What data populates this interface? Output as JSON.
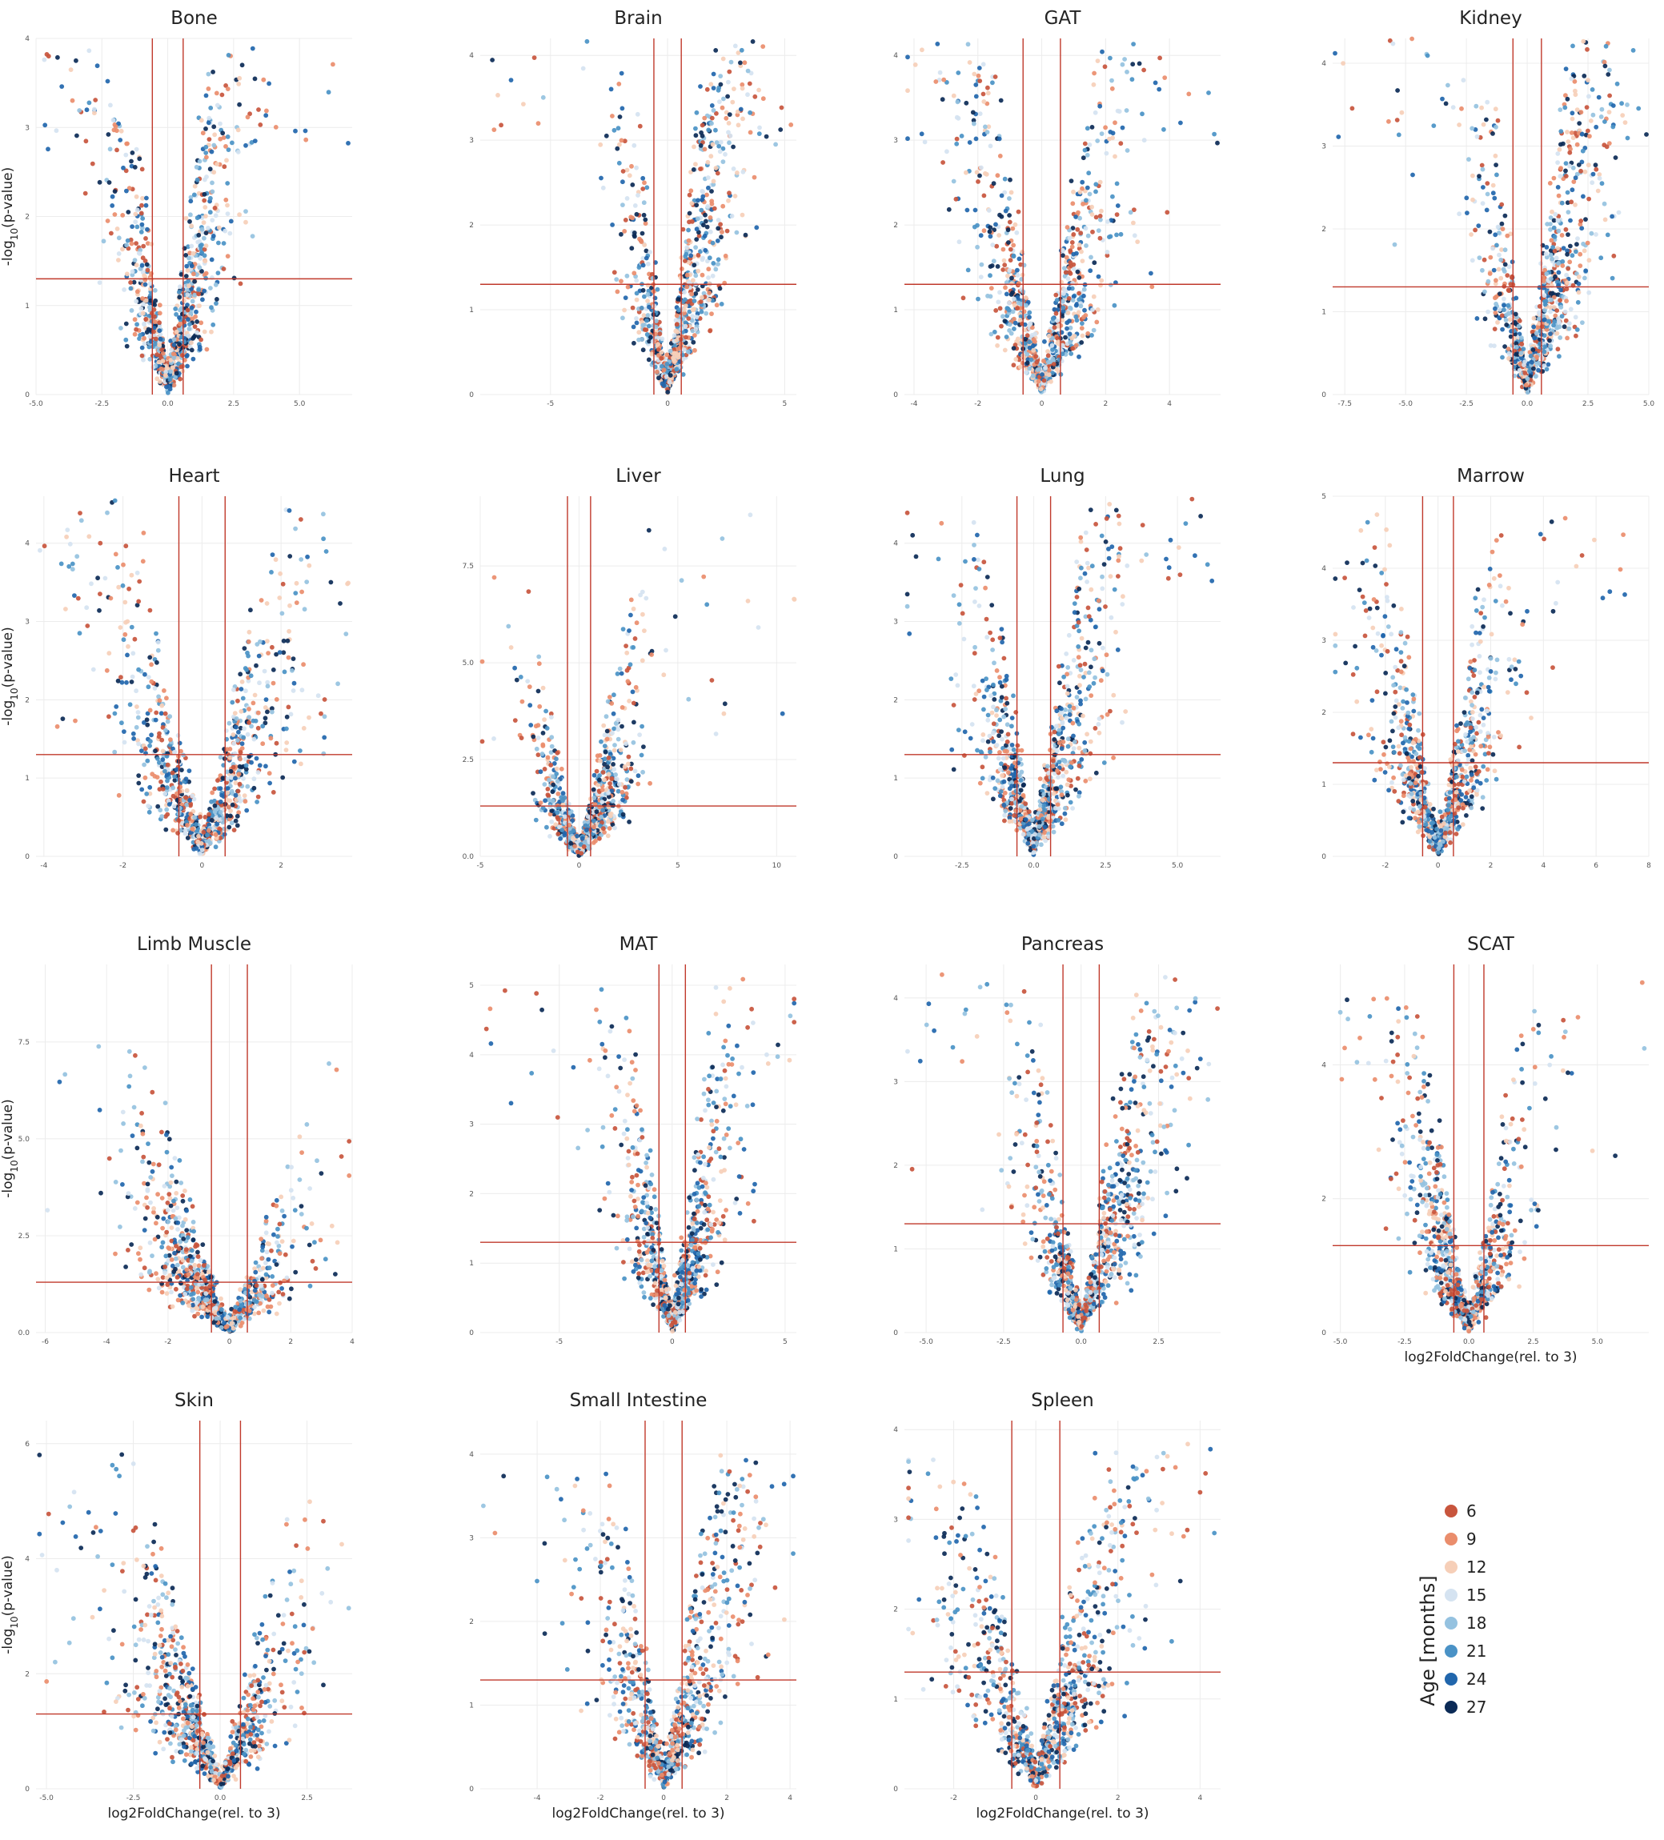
{
  "chart_data": {
    "type": "scatter",
    "x_axis_label": "log2FoldChange(rel. to 3)",
    "y_axis_label_base": "-log",
    "y_axis_label_sub": "10",
    "y_axis_label_tail": "(p-value)",
    "thresholds": {
      "x": [
        -0.585,
        0.585
      ],
      "y": 1.3
    },
    "grid": true,
    "legend": {
      "title": "Age [months]",
      "placement": "bottom-right",
      "items": [
        {
          "label": "6",
          "color": "#c8553d"
        },
        {
          "label": "9",
          "color": "#ea8d6c"
        },
        {
          "label": "12",
          "color": "#f6cfb8"
        },
        {
          "label": "15",
          "color": "#d5e3f1"
        },
        {
          "label": "18",
          "color": "#95c2e0"
        },
        {
          "label": "21",
          "color": "#4a92c6"
        },
        {
          "label": "24",
          "color": "#2166ac"
        },
        {
          "label": "27",
          "color": "#0b2a56"
        }
      ]
    },
    "panels": [
      {
        "title": "Bone",
        "xlim": [
          -5,
          7
        ],
        "ylim": [
          0,
          4.0
        ],
        "xticks": [
          "-5.0",
          "-2.5",
          "0.0",
          "2.5",
          "5.0"
        ],
        "yticks": [
          "0",
          "1",
          "2",
          "3",
          "4"
        ],
        "skew": 0.35,
        "ymax_est": 3.9
      },
      {
        "title": "Brain",
        "xlim": [
          -8,
          5.5
        ],
        "ylim": [
          0,
          4.2
        ],
        "xticks": [
          "-5",
          "0",
          "5"
        ],
        "yticks": [
          "0",
          "1",
          "2",
          "3",
          "4"
        ],
        "skew": 0.9,
        "ymax_est": 4.2
      },
      {
        "title": "GAT",
        "xlim": [
          -4.3,
          5.6
        ],
        "ylim": [
          0,
          4.2
        ],
        "xticks": [
          "-4",
          "-2",
          "0",
          "2",
          "4"
        ],
        "yticks": [
          "0",
          "1",
          "2",
          "3",
          "4"
        ],
        "skew": 0.0,
        "ymax_est": 4.2
      },
      {
        "title": "Kidney",
        "xlim": [
          -8,
          5
        ],
        "ylim": [
          0,
          4.3
        ],
        "xticks": [
          "-7.5",
          "-5.0",
          "-2.5",
          "0.0",
          "2.5",
          "5.0"
        ],
        "yticks": [
          "0",
          "1",
          "2",
          "3",
          "4"
        ],
        "skew": 0.85,
        "ymax_est": 4.3
      },
      {
        "title": "Heart",
        "xlim": [
          -4.2,
          3.8
        ],
        "ylim": [
          0,
          4.6
        ],
        "xticks": [
          "-4",
          "-2",
          "0",
          "2"
        ],
        "yticks": [
          "0",
          "1",
          "2",
          "3",
          "4"
        ],
        "skew": 0.1,
        "ymax_est": 4.6
      },
      {
        "title": "Liver",
        "xlim": [
          -5,
          11
        ],
        "ylim": [
          0,
          9.3
        ],
        "xticks": [
          "-5",
          "0",
          "5",
          "10"
        ],
        "yticks": [
          "0.0",
          "2.5",
          "5.0",
          "7.5"
        ],
        "skew": 0.6,
        "ymax_est": 9.3
      },
      {
        "title": "Lung",
        "xlim": [
          -4.5,
          6.5
        ],
        "ylim": [
          0,
          4.6
        ],
        "xticks": [
          "-2.5",
          "0.0",
          "2.5",
          "5.0"
        ],
        "yticks": [
          "0",
          "1",
          "2",
          "3",
          "4"
        ],
        "skew": 0.2,
        "ymax_est": 4.6
      },
      {
        "title": "Marrow",
        "xlim": [
          -4,
          8
        ],
        "ylim": [
          0,
          5.0
        ],
        "xticks": [
          "-2",
          "0",
          "2",
          "4",
          "6",
          "8"
        ],
        "yticks": [
          "0",
          "1",
          "2",
          "3",
          "4",
          "5"
        ],
        "skew": 0.0,
        "ymax_est": 4.8
      },
      {
        "title": "Limb Muscle",
        "xlim": [
          -6.3,
          4
        ],
        "ylim": [
          0,
          9.5
        ],
        "xticks": [
          "-6",
          "-4",
          "-2",
          "0",
          "2",
          "4"
        ],
        "yticks": [
          "0.0",
          "2.5",
          "5.0",
          "7.5"
        ],
        "skew": -0.8,
        "ymax_est": 9.2
      },
      {
        "title": "MAT",
        "xlim": [
          -8.5,
          5.5
        ],
        "ylim": [
          0,
          5.3
        ],
        "xticks": [
          "-5",
          "0",
          "5"
        ],
        "yticks": [
          "0",
          "1",
          "2",
          "3",
          "4",
          "5"
        ],
        "skew": 0.25,
        "ymax_est": 5.2
      },
      {
        "title": "Pancreas",
        "xlim": [
          -5.7,
          4.5
        ],
        "ylim": [
          0,
          4.4
        ],
        "xticks": [
          "-5.0",
          "-2.5",
          "0.0",
          "2.5"
        ],
        "yticks": [
          "0",
          "1",
          "2",
          "3",
          "4"
        ],
        "skew": 0.6,
        "ymax_est": 4.3
      },
      {
        "title": "SCAT",
        "xlim": [
          -5.3,
          7
        ],
        "ylim": [
          0,
          5.5
        ],
        "xticks": [
          "-5.0",
          "-2.5",
          "0.0",
          "2.5",
          "5.0"
        ],
        "yticks": [
          "0",
          "2",
          "4"
        ],
        "skew": -0.3,
        "ymax_est": 5.3
      },
      {
        "title": "Skin",
        "xlim": [
          -5.3,
          3.8
        ],
        "ylim": [
          0,
          6.4
        ],
        "xticks": [
          "-5.0",
          "-2.5",
          "0.0",
          "2.5"
        ],
        "yticks": [
          "0",
          "2",
          "4",
          "6"
        ],
        "skew": -0.5,
        "ymax_est": 6.2
      },
      {
        "title": "Small Intestine",
        "xlim": [
          -5.8,
          4.2
        ],
        "ylim": [
          0,
          4.4
        ],
        "xticks": [
          "-4",
          "-2",
          "0",
          "2",
          "4"
        ],
        "yticks": [
          "0",
          "1",
          "2",
          "3",
          "4"
        ],
        "skew": 0.35,
        "ymax_est": 4.0
      },
      {
        "title": "Spleen",
        "xlim": [
          -3.2,
          4.5
        ],
        "ylim": [
          0,
          4.1
        ],
        "xticks": [
          "-2",
          "0",
          "2",
          "4"
        ],
        "yticks": [
          "0",
          "1",
          "2",
          "3",
          "4"
        ],
        "skew": 0.3,
        "ymax_est": 3.9
      }
    ]
  }
}
